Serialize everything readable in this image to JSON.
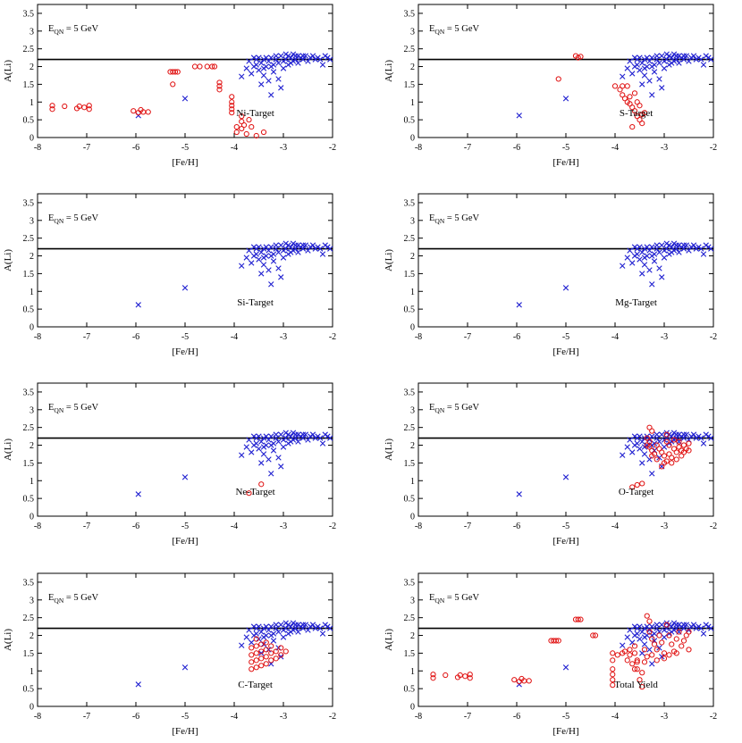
{
  "figure": {
    "xlabel": "[Fe/H]",
    "ylabel": "A(Li)",
    "xlim": [
      -8,
      -2
    ],
    "ylim": [
      0,
      3.75
    ],
    "xticks": [
      -8,
      -7,
      -6,
      -5,
      -4,
      -3,
      -2
    ],
    "yticks": [
      0,
      0.5,
      1,
      1.5,
      2,
      2.5,
      3,
      3.5
    ],
    "xtick_labels": [
      "-8",
      "-7",
      "-6",
      "-5",
      "-4",
      "-3",
      "-2"
    ],
    "ytick_labels": [
      "0",
      "0.5",
      "1",
      "1.5",
      "2",
      "2.5",
      "3",
      "3.5"
    ],
    "reference_line_y": 2.2,
    "energy_label_main": "E",
    "energy_label_sub": "QN",
    "energy_label_value": " = 5 GeV",
    "colors": {
      "observed": "#1f1fd0",
      "model": "#e01010",
      "line": "#000000"
    }
  },
  "chart_data": {
    "type": "scatter",
    "grid": false,
    "observed_series": {
      "marker": "x",
      "color": "#1f1fd0",
      "points": [
        [
          -5.95,
          0.62
        ],
        [
          -5.0,
          1.1
        ],
        [
          -3.85,
          1.72
        ],
        [
          -3.75,
          1.95
        ],
        [
          -3.7,
          2.15
        ],
        [
          -3.65,
          1.8
        ],
        [
          -3.6,
          2.0
        ],
        [
          -3.55,
          2.05
        ],
        [
          -3.5,
          1.9
        ],
        [
          -3.45,
          2.1
        ],
        [
          -3.45,
          1.5
        ],
        [
          -3.4,
          2.2
        ],
        [
          -3.4,
          1.75
        ],
        [
          -3.35,
          2.0
        ],
        [
          -3.3,
          2.15
        ],
        [
          -3.3,
          1.6
        ],
        [
          -3.25,
          1.2
        ],
        [
          -3.25,
          2.25
        ],
        [
          -3.2,
          2.05
        ],
        [
          -3.2,
          1.85
        ],
        [
          -3.15,
          2.2
        ],
        [
          -3.1,
          2.1
        ],
        [
          -3.1,
          1.65
        ],
        [
          -3.05,
          2.3
        ],
        [
          -3.05,
          1.4
        ],
        [
          -3.0,
          2.15
        ],
        [
          -3.0,
          1.95
        ],
        [
          -2.95,
          2.2
        ],
        [
          -2.9,
          2.3
        ],
        [
          -2.9,
          2.05
        ],
        [
          -2.85,
          2.25
        ],
        [
          -2.8,
          2.15
        ],
        [
          -2.8,
          2.35
        ],
        [
          -2.75,
          2.2
        ],
        [
          -2.7,
          2.3
        ],
        [
          -2.7,
          2.1
        ],
        [
          -2.65,
          2.25
        ],
        [
          -2.6,
          2.2
        ],
        [
          -2.55,
          2.3
        ],
        [
          -2.5,
          2.15
        ],
        [
          -2.45,
          2.25
        ],
        [
          -2.4,
          2.3
        ],
        [
          -2.35,
          2.2
        ],
        [
          -2.3,
          2.25
        ],
        [
          -2.25,
          2.2
        ],
        [
          -2.2,
          2.05
        ],
        [
          -2.15,
          2.3
        ],
        [
          -2.1,
          2.25
        ],
        [
          -2.05,
          2.2
        ],
        [
          -3.55,
          2.2
        ],
        [
          -3.35,
          2.25
        ],
        [
          -3.15,
          2.3
        ],
        [
          -2.95,
          2.35
        ],
        [
          -3.5,
          2.25
        ],
        [
          -3.25,
          2.0
        ],
        [
          -2.85,
          2.1
        ],
        [
          -2.6,
          2.3
        ],
        [
          -3.6,
          2.25
        ],
        [
          -2.75,
          2.3
        ],
        [
          -3.4,
          1.95
        ]
      ]
    },
    "panels": [
      {
        "id": "ni",
        "label": "Ni-Target",
        "model_points": [
          [
            -7.7,
            0.8
          ],
          [
            -7.7,
            0.9
          ],
          [
            -7.45,
            0.88
          ],
          [
            -7.2,
            0.82
          ],
          [
            -7.15,
            0.88
          ],
          [
            -7.05,
            0.85
          ],
          [
            -6.95,
            0.9
          ],
          [
            -6.95,
            0.8
          ],
          [
            -6.05,
            0.75
          ],
          [
            -5.95,
            0.7
          ],
          [
            -5.9,
            0.78
          ],
          [
            -5.85,
            0.72
          ],
          [
            -5.75,
            0.72
          ],
          [
            -5.3,
            1.85
          ],
          [
            -5.25,
            1.85
          ],
          [
            -5.2,
            1.85
          ],
          [
            -5.25,
            1.5
          ],
          [
            -5.15,
            1.85
          ],
          [
            -4.8,
            2.0
          ],
          [
            -4.7,
            2.0
          ],
          [
            -4.55,
            2.0
          ],
          [
            -4.45,
            2.0
          ],
          [
            -4.4,
            2.0
          ],
          [
            -4.3,
            1.55
          ],
          [
            -4.3,
            1.45
          ],
          [
            -4.3,
            1.35
          ],
          [
            -4.05,
            1.15
          ],
          [
            -4.05,
            1.0
          ],
          [
            -4.05,
            0.9
          ],
          [
            -4.05,
            0.8
          ],
          [
            -4.05,
            0.7
          ],
          [
            -3.95,
            0.3
          ],
          [
            -3.95,
            0.15
          ],
          [
            -3.85,
            0.6
          ],
          [
            -3.85,
            0.45
          ],
          [
            -3.85,
            0.25
          ],
          [
            -3.8,
            0.35
          ],
          [
            -3.75,
            0.1
          ],
          [
            -3.7,
            0.5
          ],
          [
            -3.65,
            0.3
          ],
          [
            -3.55,
            0.05
          ],
          [
            -3.4,
            0.15
          ]
        ]
      },
      {
        "id": "s",
        "label": "S-Target",
        "model_points": [
          [
            -5.15,
            1.65
          ],
          [
            -4.8,
            2.3
          ],
          [
            -4.75,
            2.25
          ],
          [
            -4.7,
            2.28
          ],
          [
            -4.0,
            1.45
          ],
          [
            -3.9,
            1.35
          ],
          [
            -3.85,
            1.2
          ],
          [
            -3.8,
            1.1
          ],
          [
            -3.75,
            1.0
          ],
          [
            -3.7,
            0.95
          ],
          [
            -3.65,
            0.85
          ],
          [
            -3.6,
            0.75
          ],
          [
            -3.55,
            0.6
          ],
          [
            -3.5,
            0.5
          ],
          [
            -3.45,
            0.4
          ],
          [
            -3.65,
            0.3
          ],
          [
            -3.6,
            1.25
          ],
          [
            -3.55,
            1.0
          ],
          [
            -3.5,
            0.9
          ],
          [
            -3.45,
            0.65
          ],
          [
            -3.4,
            0.7
          ],
          [
            -3.75,
            1.45
          ],
          [
            -3.85,
            1.45
          ],
          [
            -3.7,
            1.15
          ]
        ]
      },
      {
        "id": "si",
        "label": "Si-Target",
        "model_points": []
      },
      {
        "id": "mg",
        "label": "Mg-Target",
        "model_points": []
      },
      {
        "id": "ne",
        "label": "Ne-Target",
        "model_points": [
          [
            -3.7,
            0.65
          ],
          [
            -3.45,
            0.9
          ]
        ]
      },
      {
        "id": "o",
        "label": "O-Target",
        "model_points": [
          [
            -3.65,
            0.82
          ],
          [
            -3.55,
            0.88
          ],
          [
            -3.45,
            0.92
          ],
          [
            -3.3,
            2.5
          ],
          [
            -3.25,
            2.4
          ],
          [
            -3.3,
            2.1
          ],
          [
            -3.3,
            1.95
          ],
          [
            -3.25,
            1.85
          ],
          [
            -3.2,
            1.75
          ],
          [
            -3.25,
            1.7
          ],
          [
            -3.15,
            2.0
          ],
          [
            -3.1,
            1.9
          ],
          [
            -3.05,
            1.8
          ],
          [
            -3.0,
            1.7
          ],
          [
            -3.0,
            1.5
          ],
          [
            -2.95,
            2.3
          ],
          [
            -2.95,
            2.1
          ],
          [
            -2.9,
            2.0
          ],
          [
            -2.9,
            1.75
          ],
          [
            -2.85,
            1.65
          ],
          [
            -2.85,
            1.5
          ],
          [
            -2.8,
            2.15
          ],
          [
            -2.8,
            1.9
          ],
          [
            -2.75,
            1.8
          ],
          [
            -2.75,
            1.6
          ],
          [
            -2.7,
            2.1
          ],
          [
            -2.7,
            1.95
          ],
          [
            -2.65,
            1.85
          ],
          [
            -2.65,
            1.7
          ],
          [
            -2.6,
            2.0
          ],
          [
            -2.6,
            1.8
          ],
          [
            -2.55,
            1.9
          ],
          [
            -2.5,
            2.05
          ],
          [
            -2.5,
            1.85
          ],
          [
            -3.05,
            1.4
          ],
          [
            -2.95,
            1.55
          ],
          [
            -3.15,
            1.6
          ],
          [
            -3.35,
            2.2
          ],
          [
            -3.35,
            2.0
          ]
        ]
      },
      {
        "id": "c",
        "label": "C-Target",
        "model_points": [
          [
            -3.65,
            1.05
          ],
          [
            -3.65,
            1.25
          ],
          [
            -3.65,
            1.45
          ],
          [
            -3.65,
            1.65
          ],
          [
            -3.55,
            1.1
          ],
          [
            -3.55,
            1.3
          ],
          [
            -3.55,
            1.5
          ],
          [
            -3.55,
            1.7
          ],
          [
            -3.55,
            1.9
          ],
          [
            -3.45,
            1.15
          ],
          [
            -3.45,
            1.35
          ],
          [
            -3.45,
            1.55
          ],
          [
            -3.45,
            1.75
          ],
          [
            -3.35,
            1.2
          ],
          [
            -3.35,
            1.4
          ],
          [
            -3.35,
            1.6
          ],
          [
            -3.35,
            1.8
          ],
          [
            -3.25,
            1.3
          ],
          [
            -3.25,
            1.5
          ],
          [
            -3.25,
            1.7
          ],
          [
            -3.15,
            1.35
          ],
          [
            -3.15,
            1.55
          ],
          [
            -3.05,
            1.45
          ],
          [
            -3.05,
            1.65
          ],
          [
            -2.95,
            1.55
          ]
        ]
      },
      {
        "id": "total",
        "label": "Total Yield",
        "model_points": [
          [
            -7.7,
            0.8
          ],
          [
            -7.7,
            0.9
          ],
          [
            -7.45,
            0.88
          ],
          [
            -7.2,
            0.82
          ],
          [
            -7.15,
            0.88
          ],
          [
            -7.05,
            0.85
          ],
          [
            -6.95,
            0.9
          ],
          [
            -6.95,
            0.8
          ],
          [
            -6.05,
            0.75
          ],
          [
            -5.95,
            0.7
          ],
          [
            -5.9,
            0.78
          ],
          [
            -5.85,
            0.72
          ],
          [
            -5.75,
            0.72
          ],
          [
            -5.3,
            1.85
          ],
          [
            -5.25,
            1.85
          ],
          [
            -5.2,
            1.85
          ],
          [
            -5.15,
            1.85
          ],
          [
            -4.8,
            2.45
          ],
          [
            -4.75,
            2.45
          ],
          [
            -4.7,
            2.45
          ],
          [
            -4.45,
            2.0
          ],
          [
            -4.4,
            2.0
          ],
          [
            -4.05,
            0.6
          ],
          [
            -4.05,
            0.75
          ],
          [
            -4.05,
            0.9
          ],
          [
            -4.05,
            1.05
          ],
          [
            -4.05,
            1.3
          ],
          [
            -4.05,
            1.5
          ],
          [
            -3.95,
            1.45
          ],
          [
            -3.85,
            1.5
          ],
          [
            -3.8,
            1.55
          ],
          [
            -3.75,
            1.3
          ],
          [
            -3.7,
            1.6
          ],
          [
            -3.7,
            1.45
          ],
          [
            -3.65,
            1.2
          ],
          [
            -3.6,
            1.7
          ],
          [
            -3.6,
            1.5
          ],
          [
            -3.55,
            1.3
          ],
          [
            -3.55,
            1.05
          ],
          [
            -3.5,
            0.75
          ],
          [
            -3.45,
            0.55
          ],
          [
            -3.45,
            0.95
          ],
          [
            -3.4,
            1.6
          ],
          [
            -3.35,
            1.4
          ],
          [
            -3.35,
            2.55
          ],
          [
            -3.3,
            2.4
          ],
          [
            -3.3,
            2.1
          ],
          [
            -3.25,
            1.9
          ],
          [
            -3.2,
            1.75
          ],
          [
            -3.15,
            1.6
          ],
          [
            -3.1,
            2.0
          ],
          [
            -3.05,
            1.8
          ],
          [
            -3.0,
            1.5
          ],
          [
            -2.95,
            2.3
          ],
          [
            -2.9,
            2.0
          ],
          [
            -2.85,
            1.75
          ],
          [
            -2.8,
            1.55
          ],
          [
            -2.75,
            1.9
          ],
          [
            -2.7,
            2.1
          ],
          [
            -2.65,
            1.7
          ],
          [
            -2.6,
            1.85
          ],
          [
            -2.55,
            2.0
          ],
          [
            -2.5,
            1.6
          ],
          [
            -2.5,
            2.1
          ],
          [
            -3.25,
            1.45
          ],
          [
            -3.15,
            1.3
          ],
          [
            -3.0,
            1.35
          ],
          [
            -2.9,
            1.45
          ],
          [
            -2.75,
            1.5
          ],
          [
            -3.4,
            1.25
          ],
          [
            -3.6,
            1.05
          ],
          [
            -3.55,
            1.25
          ]
        ]
      }
    ]
  }
}
